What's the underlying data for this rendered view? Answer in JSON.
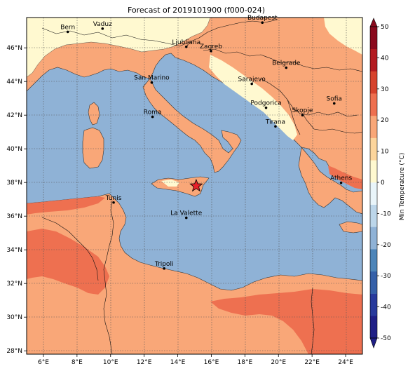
{
  "title": "Forecast of 2019101900 (f000-024)",
  "map": {
    "lon_range": [
      5.0,
      25.0
    ],
    "lat_range": [
      27.8,
      47.8
    ],
    "lon_ticks": [
      "6°E",
      "8°E",
      "10°E",
      "12°E",
      "14°E",
      "16°E",
      "18°E",
      "20°E",
      "22°E",
      "24°E"
    ],
    "lat_ticks": [
      "28°N",
      "30°N",
      "32°N",
      "34°N",
      "36°N",
      "38°N",
      "40°N",
      "42°N",
      "44°N",
      "46°N"
    ],
    "gridlines": true,
    "marker": {
      "lon": 15.1,
      "lat": 37.8,
      "symbol": "star",
      "color": "#e8202a"
    },
    "cities": [
      {
        "name": "Bern",
        "lon": 7.45,
        "lat": 46.95
      },
      {
        "name": "Vaduz",
        "lon": 9.52,
        "lat": 47.14
      },
      {
        "name": "Budapest",
        "lon": 19.04,
        "lat": 47.5
      },
      {
        "name": "Ljubljana",
        "lon": 14.51,
        "lat": 46.06
      },
      {
        "name": "Zagreb",
        "lon": 15.98,
        "lat": 45.81
      },
      {
        "name": "Belgrade",
        "lon": 20.46,
        "lat": 44.82
      },
      {
        "name": "San Marino",
        "lon": 12.45,
        "lat": 43.94
      },
      {
        "name": "Sarajevo",
        "lon": 18.41,
        "lat": 43.86
      },
      {
        "name": "Sofia",
        "lon": 23.32,
        "lat": 42.7
      },
      {
        "name": "Roma",
        "lon": 12.5,
        "lat": 41.9
      },
      {
        "name": "Podgorica",
        "lon": 19.26,
        "lat": 42.44
      },
      {
        "name": "Skopje",
        "lon": 21.43,
        "lat": 42.0
      },
      {
        "name": "Tirana",
        "lon": 19.82,
        "lat": 41.33
      },
      {
        "name": "Athens",
        "lon": 23.73,
        "lat": 37.98
      },
      {
        "name": "Tunis",
        "lon": 10.18,
        "lat": 36.81
      },
      {
        "name": "La Valette",
        "lon": 14.51,
        "lat": 35.9
      },
      {
        "name": "Tripoli",
        "lon": 13.19,
        "lat": 32.89
      }
    ]
  },
  "colorbar": {
    "label": "Min Temperature (°C)",
    "ticks": [
      "-50",
      "-40",
      "-30",
      "-20",
      "-10",
      "0",
      "10",
      "20",
      "30",
      "40",
      "50"
    ],
    "range": [
      -50,
      50
    ],
    "colors": [
      "#1f1f86",
      "#283a9c",
      "#3560a8",
      "#4d85b9",
      "#8fb2d6",
      "#bcd6ea",
      "#e9f5fa",
      "#fff9d0",
      "#fcd59c",
      "#f9a778",
      "#ee7050",
      "#d6432d",
      "#b31b21",
      "#8a0a1d"
    ]
  },
  "palette": {
    "sea": "#8fb2d6",
    "warm": "#f9a778",
    "cool_land": "#fff9d0",
    "hot": "#ee7050",
    "coast": "#333333",
    "border": "#111111"
  }
}
